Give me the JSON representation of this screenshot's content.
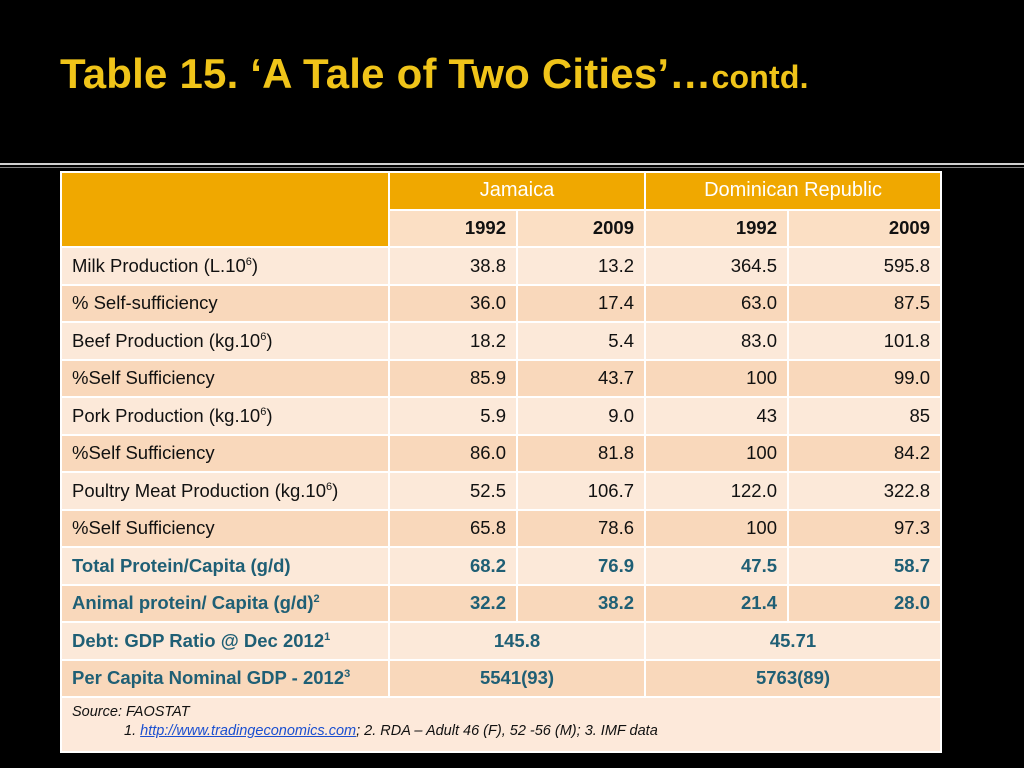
{
  "slide": {
    "title_main": "Table 15.  ‘A Tale of Two Cities’…",
    "title_suffix": "contd."
  },
  "table": {
    "country_headers": [
      "Jamaica",
      "Dominican Republic"
    ],
    "years": [
      "1992",
      "2009",
      "1992",
      "2009"
    ],
    "rows": [
      {
        "label": "Milk Production (L.10",
        "sup": "6",
        "tail": ")",
        "values": [
          "38.8",
          "13.2",
          "364.5",
          "595.8"
        ]
      },
      {
        "label": "% Self-sufficiency",
        "values": [
          "36.0",
          "17.4",
          "63.0",
          "87.5"
        ]
      },
      {
        "label": "Beef Production (kg.10",
        "sup": "6",
        "tail": ")",
        "values": [
          "18.2",
          "5.4",
          "83.0",
          "101.8"
        ]
      },
      {
        "label": "%Self Sufficiency",
        "values": [
          "85.9",
          "43.7",
          "100",
          "99.0"
        ]
      },
      {
        "label": "Pork Production (kg.10",
        "sup": "6",
        "tail": ")",
        "values": [
          "5.9",
          "9.0",
          "43",
          "85"
        ]
      },
      {
        "label": "%Self Sufficiency",
        "values": [
          "86.0",
          "81.8",
          "100",
          "84.2"
        ]
      },
      {
        "label": "Poultry Meat Production (kg.10",
        "sup": "6",
        "tail": ")",
        "values": [
          "52.5",
          "106.7",
          "122.0",
          "322.8"
        ]
      },
      {
        "label": "%Self Sufficiency",
        "values": [
          "65.8",
          "78.6",
          "100",
          "97.3"
        ]
      }
    ],
    "highlight_rows": [
      {
        "label": "Total Protein/Capita (g/d)",
        "values": [
          "68.2",
          "76.9",
          "47.5",
          "58.7"
        ]
      },
      {
        "label": "Animal protein/ Capita (g/d)",
        "sup": "2",
        "values": [
          "32.2",
          "38.2",
          "21.4",
          "28.0"
        ]
      }
    ],
    "span_rows": [
      {
        "label": "Debt: GDP Ratio @ Dec 2012",
        "sup": "1",
        "values": [
          "145.8",
          "45.71"
        ]
      },
      {
        "label": "Per Capita Nominal GDP - 2012",
        "sup": "3",
        "values": [
          "5541(93)",
          "5763(89)"
        ]
      }
    ],
    "source": {
      "line1": "Source: FAOSTAT",
      "line2_prefix": "1. ",
      "link": "http://www.tradingeconomics.com",
      "line2_suffix": "; 2.  RDA – Adult 46 (F), 52 -56 (M); 3.  IMF data"
    }
  },
  "colors": {
    "title": "#f0c419",
    "header_bg": "#f0a800",
    "row_light": "#fce9d9",
    "row_dark": "#f9d8bb",
    "highlight_text": "#1f5f75"
  }
}
